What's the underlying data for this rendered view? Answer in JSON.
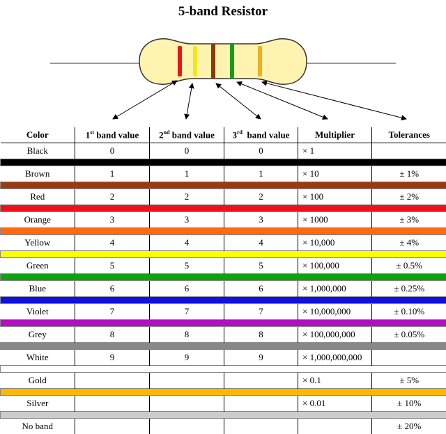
{
  "title": "5-band Resistor",
  "colors": {
    "body": "#fff3b0",
    "body_stroke": "#333333",
    "lead": "#999999",
    "band1": "#e8161b",
    "band2": "#f5e61a",
    "band3": "#8b3a10",
    "band4": "#1a9a1a",
    "band5": "#f0b020"
  },
  "headers": {
    "color": "Color",
    "band1": {
      "prefix": "1",
      "sup": "st",
      "suffix": " band value"
    },
    "band2": {
      "prefix": "2",
      "sup": "nd",
      "suffix": " band value"
    },
    "band3": {
      "prefix": "3",
      "sup": "rd",
      "suffix": "  band value"
    },
    "multiplier": "Multiplier",
    "tolerance": "Tolerances"
  },
  "rows": [
    {
      "name": "Black",
      "b1": "0",
      "b2": "0",
      "b3": "0",
      "mult": "× 1",
      "tol": "",
      "color": "#000000"
    },
    {
      "name": "Brown",
      "b1": "1",
      "b2": "1",
      "b3": "1",
      "mult": "× 10",
      "tol": "± 1%",
      "color": "#9a3a12"
    },
    {
      "name": "Red",
      "b1": "2",
      "b2": "2",
      "b3": "2",
      "mult": "× 100",
      "tol": "± 2%",
      "color": "#f0101a"
    },
    {
      "name": "Orange",
      "b1": "3",
      "b2": "3",
      "b3": "3",
      "mult": "× 1000",
      "tol": "± 3%",
      "color": "#ff6a10"
    },
    {
      "name": "Yellow",
      "b1": "4",
      "b2": "4",
      "b3": "4",
      "mult": "× 10,000",
      "tol": "± 4%",
      "color": "#ffff00"
    },
    {
      "name": "Green",
      "b1": "5",
      "b2": "5",
      "b3": "5",
      "mult": "× 100,000",
      "tol": "± 0.5%",
      "color": "#10a010"
    },
    {
      "name": "Blue",
      "b1": "6",
      "b2": "6",
      "b3": "6",
      "mult": "× 1,000,000",
      "tol": "± 0.25%",
      "color": "#1010e0"
    },
    {
      "name": "Violet",
      "b1": "7",
      "b2": "7",
      "b3": "7",
      "mult": "× 10,000,000",
      "tol": "± 0.10%",
      "color": "#b010c0"
    },
    {
      "name": "Grey",
      "b1": "8",
      "b2": "8",
      "b3": "8",
      "mult": "× 100,000,000",
      "tol": "± 0.05%",
      "color": "#888888"
    },
    {
      "name": "White",
      "b1": "9",
      "b2": "9",
      "b3": "9",
      "mult": "× 1,000,000,000",
      "tol": "",
      "color": "#ffffff"
    },
    {
      "name": "Gold",
      "b1": "",
      "b2": "",
      "b3": "",
      "mult": "× 0.1",
      "tol": "± 5%",
      "color": "#ffb800"
    },
    {
      "name": "Silver",
      "b1": "",
      "b2": "",
      "b3": "",
      "mult": "× 0.01",
      "tol": "± 10%",
      "color": "#cccccc"
    },
    {
      "name": "No band",
      "b1": "",
      "b2": "",
      "b3": "",
      "mult": "",
      "tol": "± 20%",
      "color": ""
    }
  ]
}
